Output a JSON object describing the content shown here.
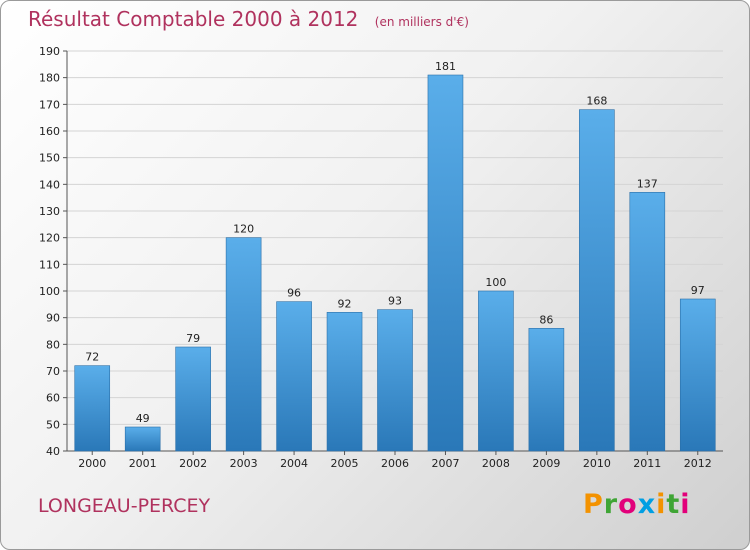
{
  "chart_data": {
    "type": "bar",
    "title": "Résultat Comptable 2000 à 2012",
    "subtitle": "(en milliers d'€)",
    "categories": [
      "2000",
      "2001",
      "2002",
      "2003",
      "2004",
      "2005",
      "2006",
      "2007",
      "2008",
      "2009",
      "2010",
      "2011",
      "2012"
    ],
    "values": [
      72,
      49,
      79,
      120,
      96,
      92,
      93,
      181,
      100,
      86,
      168,
      137,
      97
    ],
    "ylim": [
      40,
      190
    ],
    "yticks": [
      40,
      50,
      60,
      70,
      80,
      90,
      100,
      110,
      120,
      130,
      140,
      150,
      160,
      170,
      180,
      190
    ],
    "bar_color": "#4a9ee0",
    "grid": true
  },
  "commune": "LONGEAU-PERCEY",
  "logo": {
    "letters": [
      "P",
      "r",
      "o",
      "x",
      "i",
      "t",
      "i"
    ],
    "colors": [
      "#f39200",
      "#3fa535",
      "#e2007a",
      "#009fe3",
      "#f39200",
      "#3fa535",
      "#e2007a"
    ]
  }
}
